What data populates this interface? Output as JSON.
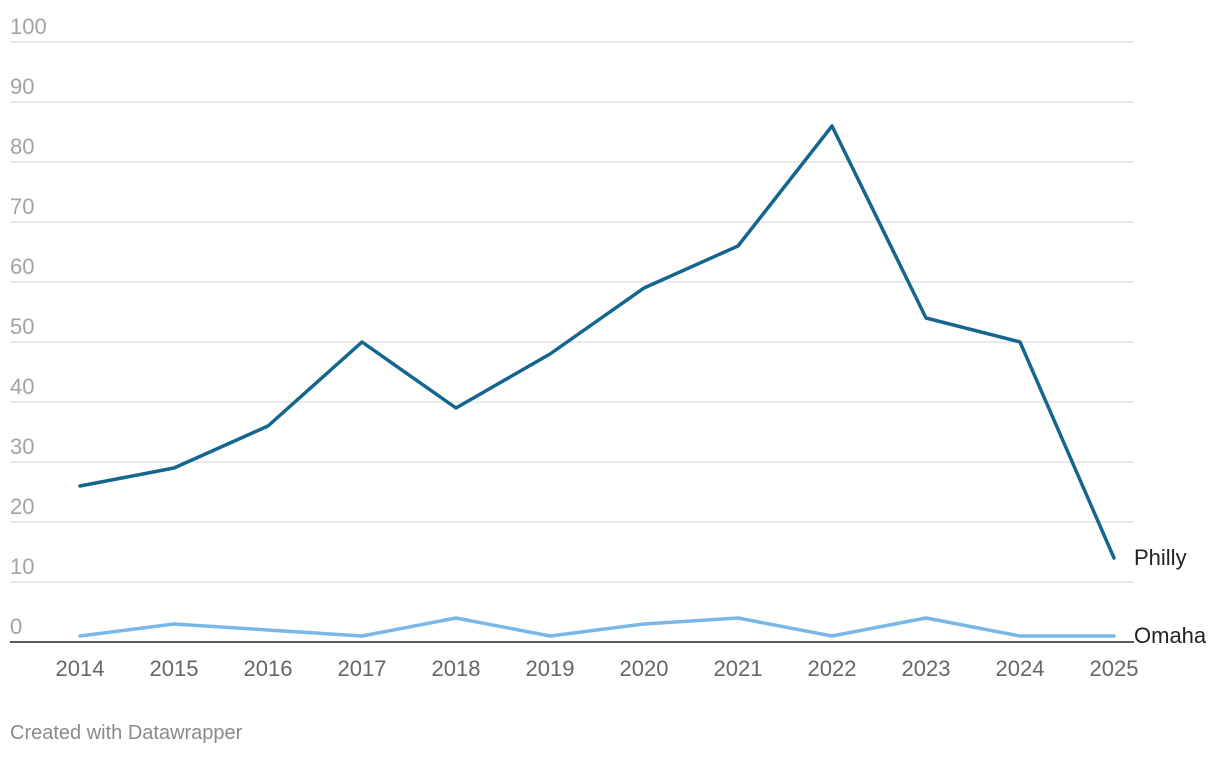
{
  "chart_data": {
    "type": "line",
    "x": [
      "2014",
      "2015",
      "2016",
      "2017",
      "2018",
      "2019",
      "2020",
      "2021",
      "2022",
      "2023",
      "2024",
      "2025"
    ],
    "series": [
      {
        "name": "Philly",
        "color": "#15668f",
        "values": [
          26,
          29,
          36,
          50,
          39,
          48,
          59,
          66,
          86,
          54,
          50,
          14
        ]
      },
      {
        "name": "Omaha",
        "color": "#79b8e6",
        "values": [
          1,
          3,
          2,
          1,
          4,
          1,
          3,
          4,
          1,
          4,
          1,
          1
        ]
      }
    ],
    "ylim": [
      0,
      100
    ],
    "yticks": [
      "0",
      "10",
      "20",
      "30",
      "40",
      "50",
      "60",
      "70",
      "80",
      "90",
      "100"
    ],
    "grid": true,
    "legend": "direct labels at line ends",
    "title": "",
    "xlabel": "",
    "ylabel": ""
  },
  "footer": {
    "credit": "Created with Datawrapper"
  }
}
